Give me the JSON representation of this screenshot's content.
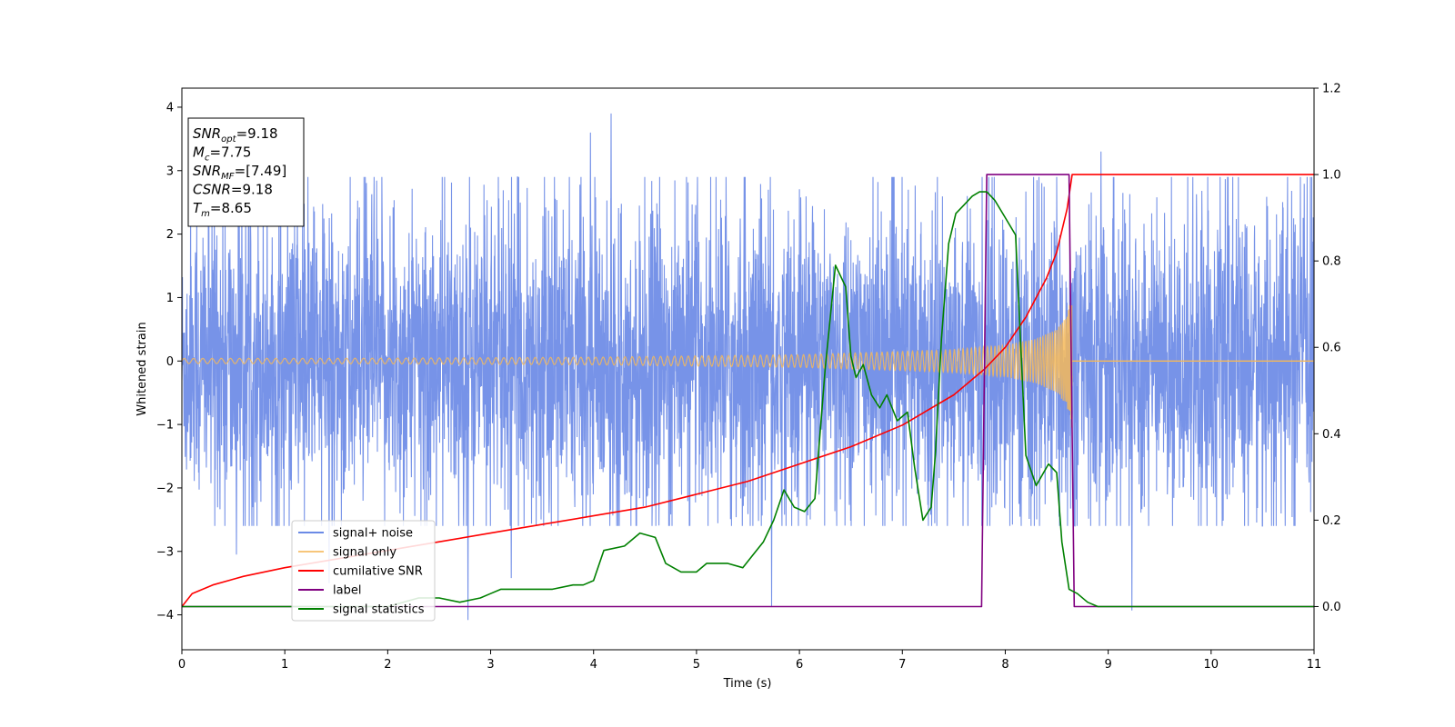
{
  "chart_data": {
    "type": "line",
    "xlabel": "Time (s)",
    "ylabel": "Whitened strain",
    "xlim": [
      0,
      11
    ],
    "ylim_left": [
      -4.55,
      4.3
    ],
    "ylim_right": [
      -0.1,
      1.2
    ],
    "x_ticks": [
      0,
      1,
      2,
      3,
      4,
      5,
      6,
      7,
      8,
      9,
      10,
      11
    ],
    "y_ticks_left": [
      -4,
      -3,
      -2,
      -1,
      0,
      1,
      2,
      3,
      4
    ],
    "y_ticks_right": [
      0.0,
      0.2,
      0.4,
      0.6,
      0.8,
      1.0,
      1.2
    ],
    "legend_position": "lower-left",
    "info_box": {
      "position": "top-left",
      "lines": [
        {
          "var": "SNR",
          "sub": "opt",
          "value": "=9.18"
        },
        {
          "var": "M",
          "sub": "c",
          "value": "=7.75"
        },
        {
          "var": "SNR",
          "sub": "MF",
          "value": "=[7.49]"
        },
        {
          "var": "CSNR",
          "sub": "",
          "value": "=9.18"
        },
        {
          "var": "T",
          "sub": "m",
          "value": "=8.65"
        }
      ]
    },
    "series": [
      {
        "name": "signal+ noise",
        "axis": "left",
        "color": "#6b8ae6",
        "kind": "noise",
        "noise_band": [
          -2.6,
          2.9
        ],
        "spikes": [
          [
            4.17,
            3.9
          ],
          [
            3.97,
            3.6
          ],
          [
            8.93,
            3.3
          ],
          [
            2.78,
            -4.08
          ],
          [
            9.23,
            -3.93
          ],
          [
            5.73,
            -3.87
          ],
          [
            3.2,
            -3.42
          ],
          [
            1.43,
            -3.5
          ],
          [
            0.53,
            -3.05
          ]
        ]
      },
      {
        "name": "signal only",
        "axis": "left",
        "color": "#f5b859",
        "kind": "chirp",
        "start_x": 0,
        "merger_x": 8.65,
        "end_x": 11,
        "envelope": [
          [
            0,
            0.04
          ],
          [
            2,
            0.045
          ],
          [
            4,
            0.06
          ],
          [
            5,
            0.08
          ],
          [
            6,
            0.1
          ],
          [
            7,
            0.15
          ],
          [
            7.5,
            0.18
          ],
          [
            8,
            0.25
          ],
          [
            8.3,
            0.35
          ],
          [
            8.5,
            0.5
          ],
          [
            8.6,
            0.7
          ],
          [
            8.64,
            1.05
          ]
        ]
      },
      {
        "name": "cumilative SNR",
        "axis": "right",
        "color": "#ff0000",
        "x": [
          0,
          0.1,
          0.3,
          0.6,
          1,
          1.5,
          2,
          2.5,
          3,
          3.5,
          4,
          4.5,
          5,
          5.5,
          6,
          6.5,
          7,
          7.5,
          7.8,
          8.0,
          8.2,
          8.4,
          8.5,
          8.6,
          8.65,
          8.7,
          9,
          10,
          11
        ],
        "y": [
          0.0,
          0.03,
          0.05,
          0.07,
          0.09,
          0.11,
          0.13,
          0.15,
          0.17,
          0.19,
          0.21,
          0.23,
          0.26,
          0.29,
          0.33,
          0.37,
          0.42,
          0.49,
          0.55,
          0.6,
          0.67,
          0.76,
          0.82,
          0.92,
          1.0,
          1.0,
          1.0,
          1.0,
          1.0
        ]
      },
      {
        "name": "label",
        "axis": "right",
        "color": "#800080",
        "x": [
          0,
          7.77,
          7.82,
          8.62,
          8.67,
          11
        ],
        "y": [
          0,
          0,
          1,
          1,
          0,
          0
        ]
      },
      {
        "name": "signal statistics",
        "axis": "right",
        "color": "#008000",
        "x": [
          0,
          1,
          2,
          2.3,
          2.5,
          2.7,
          2.9,
          3.0,
          3.1,
          3.2,
          3.4,
          3.6,
          3.8,
          3.9,
          4.0,
          4.1,
          4.3,
          4.45,
          4.6,
          4.7,
          4.85,
          5.0,
          5.1,
          5.3,
          5.45,
          5.55,
          5.65,
          5.75,
          5.85,
          5.95,
          6.05,
          6.15,
          6.25,
          6.35,
          6.45,
          6.5,
          6.55,
          6.62,
          6.7,
          6.78,
          6.85,
          6.95,
          7.05,
          7.12,
          7.2,
          7.28,
          7.32,
          7.38,
          7.45,
          7.52,
          7.6,
          7.68,
          7.75,
          7.82,
          7.9,
          8.0,
          8.1,
          8.2,
          8.3,
          8.42,
          8.5,
          8.55,
          8.62,
          8.7,
          8.8,
          8.9,
          9.0,
          10,
          11
        ],
        "y": [
          0,
          0,
          0.0,
          0.02,
          0.02,
          0.01,
          0.02,
          0.03,
          0.04,
          0.04,
          0.04,
          0.04,
          0.05,
          0.05,
          0.06,
          0.13,
          0.14,
          0.17,
          0.16,
          0.1,
          0.08,
          0.08,
          0.1,
          0.1,
          0.09,
          0.12,
          0.15,
          0.2,
          0.27,
          0.23,
          0.22,
          0.25,
          0.55,
          0.79,
          0.74,
          0.58,
          0.53,
          0.56,
          0.49,
          0.46,
          0.49,
          0.43,
          0.45,
          0.32,
          0.2,
          0.23,
          0.35,
          0.62,
          0.84,
          0.91,
          0.93,
          0.95,
          0.96,
          0.96,
          0.94,
          0.9,
          0.86,
          0.35,
          0.28,
          0.33,
          0.31,
          0.15,
          0.04,
          0.03,
          0.01,
          0.0,
          0.0,
          0.0,
          0.0
        ]
      }
    ]
  }
}
